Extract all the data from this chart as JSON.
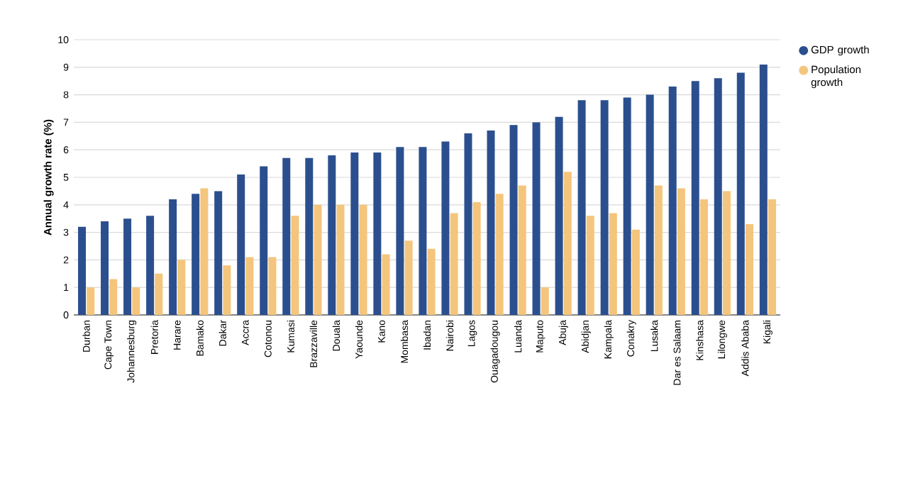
{
  "chart_data": {
    "type": "bar",
    "ylabel": "Annual growth rate (%)",
    "categories": [
      "Durban",
      "Cape Town",
      "Johannesburg",
      "Pretoria",
      "Harare",
      "Bamako",
      "Dakar",
      "Accra",
      "Cotonou",
      "Kumasi",
      "Brazzaville",
      "Douala",
      "Yaounde",
      "Kano",
      "Mombasa",
      "Ibadan",
      "Nairobi",
      "Lagos",
      "Ouagadougou",
      "Luanda",
      "Maputo",
      "Abuja",
      "Abidjan",
      "Kampala",
      "Conakry",
      "Lusaka",
      "Dar es Salaam",
      "Kinshasa",
      "Lilongwe",
      "Addis Ababa",
      "Kigali"
    ],
    "series": [
      {
        "name": "GDP growth",
        "color": "#2b4f8e",
        "values": [
          3.2,
          3.4,
          3.5,
          3.6,
          4.2,
          4.4,
          4.5,
          5.1,
          5.4,
          5.7,
          5.7,
          5.8,
          5.9,
          5.9,
          6.1,
          6.1,
          6.3,
          6.6,
          6.7,
          6.9,
          7.0,
          7.2,
          7.8,
          7.8,
          7.9,
          8.0,
          8.3,
          8.5,
          8.6,
          8.8,
          9.1
        ]
      },
      {
        "name": "Population growth",
        "color": "#f4c57c",
        "values": [
          1.0,
          1.3,
          1.0,
          1.5,
          2.0,
          4.6,
          1.8,
          2.1,
          2.1,
          3.6,
          4.0,
          4.0,
          4.0,
          2.2,
          2.7,
          2.4,
          3.7,
          4.1,
          4.4,
          4.7,
          1.0,
          5.2,
          3.6,
          3.7,
          3.1,
          4.7,
          4.6,
          4.2,
          4.5,
          3.3,
          4.2
        ]
      }
    ],
    "ylim": [
      0,
      10
    ],
    "yticks": [
      0,
      1,
      2,
      3,
      4,
      5,
      6,
      7,
      8,
      9,
      10
    ],
    "grid": "y",
    "legend": "top right"
  }
}
